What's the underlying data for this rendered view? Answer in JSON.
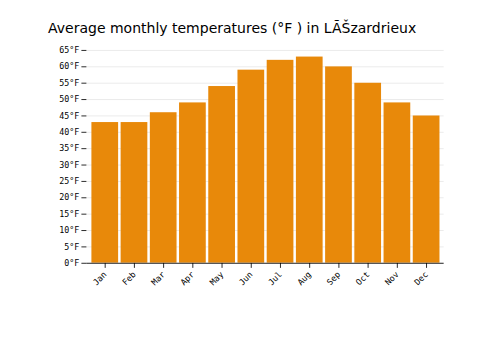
{
  "chart_data": {
    "type": "bar",
    "title": "Average monthly temperatures (°F ) in LÃŠzardrieux",
    "categories": [
      "Jan",
      "Feb",
      "Mar",
      "Apr",
      "May",
      "Jun",
      "Jul",
      "Aug",
      "Sep",
      "Oct",
      "Nov",
      "Dec"
    ],
    "values": [
      43,
      43,
      46,
      49,
      54,
      59,
      62,
      63,
      60,
      55,
      49,
      45
    ],
    "color": "#E8890A",
    "ylim": [
      0,
      65
    ],
    "yticks": [
      {
        "value": 0,
        "label": "0°F"
      },
      {
        "value": 5,
        "label": "5°F"
      },
      {
        "value": 10,
        "label": "10°F"
      },
      {
        "value": 15,
        "label": "15°F"
      },
      {
        "value": 20,
        "label": "20°F"
      },
      {
        "value": 25,
        "label": "25°F"
      },
      {
        "value": 30,
        "label": "30°F"
      },
      {
        "value": 35,
        "label": "35°F"
      },
      {
        "value": 40,
        "label": "40°F"
      },
      {
        "value": 45,
        "label": "45°F"
      },
      {
        "value": 50,
        "label": "50°F"
      },
      {
        "value": 55,
        "label": "55°F"
      },
      {
        "value": 60,
        "label": "60°F"
      },
      {
        "value": 65,
        "label": "65°F"
      }
    ],
    "grid": true
  }
}
